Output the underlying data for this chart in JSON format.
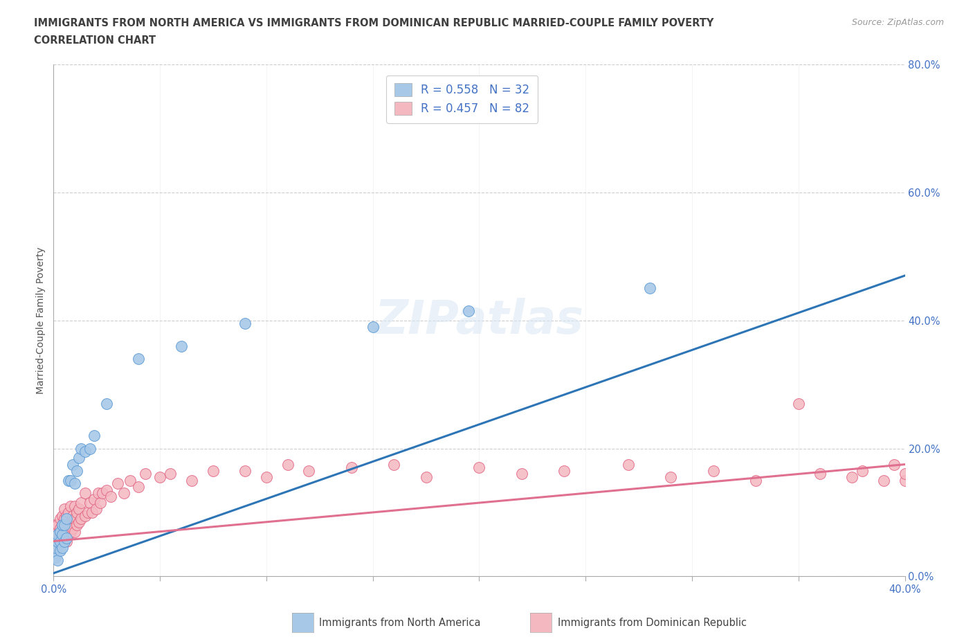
{
  "title_line1": "IMMIGRANTS FROM NORTH AMERICA VS IMMIGRANTS FROM DOMINICAN REPUBLIC MARRIED-COUPLE FAMILY POVERTY",
  "title_line2": "CORRELATION CHART",
  "source_text": "Source: ZipAtlas.com",
  "ylabel": "Married-Couple Family Poverty",
  "xlim": [
    0.0,
    0.4
  ],
  "ylim": [
    0.0,
    0.8
  ],
  "xticks": [
    0.0,
    0.05,
    0.1,
    0.15,
    0.2,
    0.25,
    0.3,
    0.35,
    0.4
  ],
  "yticks": [
    0.0,
    0.2,
    0.4,
    0.6,
    0.8
  ],
  "ytick_labels": [
    "0.0%",
    "20.0%",
    "40.0%",
    "60.0%",
    "80.0%"
  ],
  "xtick_labels": [
    "0.0%",
    "",
    "",
    "",
    "",
    "",
    "",
    "",
    "40.0%"
  ],
  "blue_color": "#a8c8e8",
  "blue_edge_color": "#5b9bd5",
  "pink_color": "#f4b8c1",
  "pink_edge_color": "#e06080",
  "line_blue_color": "#2e75b6",
  "line_pink_color": "#e07090",
  "R_blue": 0.558,
  "N_blue": 32,
  "R_pink": 0.457,
  "N_pink": 82,
  "legend_label_blue": "Immigrants from North America",
  "legend_label_pink": "Immigrants from Dominican Republic",
  "watermark": "ZIPatlas",
  "background_color": "#ffffff",
  "grid_color": "#c8c8c8",
  "title_color": "#404040",
  "axis_label_color": "#555555",
  "tick_color": "#4472c4",
  "blue_line_x0": 0.0,
  "blue_line_y0": 0.005,
  "blue_line_x1": 0.4,
  "blue_line_y1": 0.47,
  "pink_line_x0": 0.0,
  "pink_line_y0": 0.055,
  "pink_line_x1": 0.4,
  "pink_line_y1": 0.175,
  "blue_scatter_x": [
    0.001,
    0.001,
    0.002,
    0.002,
    0.002,
    0.003,
    0.003,
    0.003,
    0.004,
    0.004,
    0.004,
    0.005,
    0.005,
    0.006,
    0.006,
    0.007,
    0.008,
    0.009,
    0.01,
    0.011,
    0.012,
    0.013,
    0.015,
    0.017,
    0.019,
    0.025,
    0.04,
    0.06,
    0.09,
    0.15,
    0.195,
    0.28
  ],
  "blue_scatter_y": [
    0.03,
    0.045,
    0.025,
    0.055,
    0.065,
    0.04,
    0.055,
    0.07,
    0.045,
    0.065,
    0.08,
    0.055,
    0.08,
    0.06,
    0.09,
    0.15,
    0.15,
    0.175,
    0.145,
    0.165,
    0.185,
    0.2,
    0.195,
    0.2,
    0.22,
    0.27,
    0.34,
    0.36,
    0.395,
    0.39,
    0.415,
    0.45
  ],
  "pink_scatter_x": [
    0.001,
    0.001,
    0.001,
    0.002,
    0.002,
    0.002,
    0.002,
    0.003,
    0.003,
    0.003,
    0.003,
    0.004,
    0.004,
    0.004,
    0.004,
    0.005,
    0.005,
    0.005,
    0.005,
    0.006,
    0.006,
    0.006,
    0.007,
    0.007,
    0.007,
    0.008,
    0.008,
    0.008,
    0.009,
    0.009,
    0.01,
    0.01,
    0.01,
    0.011,
    0.011,
    0.012,
    0.012,
    0.013,
    0.013,
    0.015,
    0.015,
    0.016,
    0.017,
    0.018,
    0.019,
    0.02,
    0.021,
    0.022,
    0.023,
    0.025,
    0.027,
    0.03,
    0.033,
    0.036,
    0.04,
    0.043,
    0.05,
    0.055,
    0.065,
    0.075,
    0.09,
    0.1,
    0.11,
    0.12,
    0.14,
    0.16,
    0.175,
    0.2,
    0.22,
    0.24,
    0.27,
    0.29,
    0.31,
    0.33,
    0.35,
    0.36,
    0.375,
    0.38,
    0.39,
    0.395,
    0.4,
    0.4
  ],
  "pink_scatter_y": [
    0.055,
    0.065,
    0.08,
    0.045,
    0.06,
    0.07,
    0.08,
    0.05,
    0.065,
    0.075,
    0.09,
    0.055,
    0.07,
    0.08,
    0.095,
    0.06,
    0.075,
    0.09,
    0.105,
    0.055,
    0.075,
    0.095,
    0.065,
    0.08,
    0.1,
    0.07,
    0.085,
    0.11,
    0.075,
    0.095,
    0.07,
    0.09,
    0.11,
    0.08,
    0.1,
    0.085,
    0.105,
    0.09,
    0.115,
    0.095,
    0.13,
    0.1,
    0.115,
    0.1,
    0.12,
    0.105,
    0.13,
    0.115,
    0.13,
    0.135,
    0.125,
    0.145,
    0.13,
    0.15,
    0.14,
    0.16,
    0.155,
    0.16,
    0.15,
    0.165,
    0.165,
    0.155,
    0.175,
    0.165,
    0.17,
    0.175,
    0.155,
    0.17,
    0.16,
    0.165,
    0.175,
    0.155,
    0.165,
    0.15,
    0.27,
    0.16,
    0.155,
    0.165,
    0.15,
    0.175,
    0.15,
    0.16
  ]
}
